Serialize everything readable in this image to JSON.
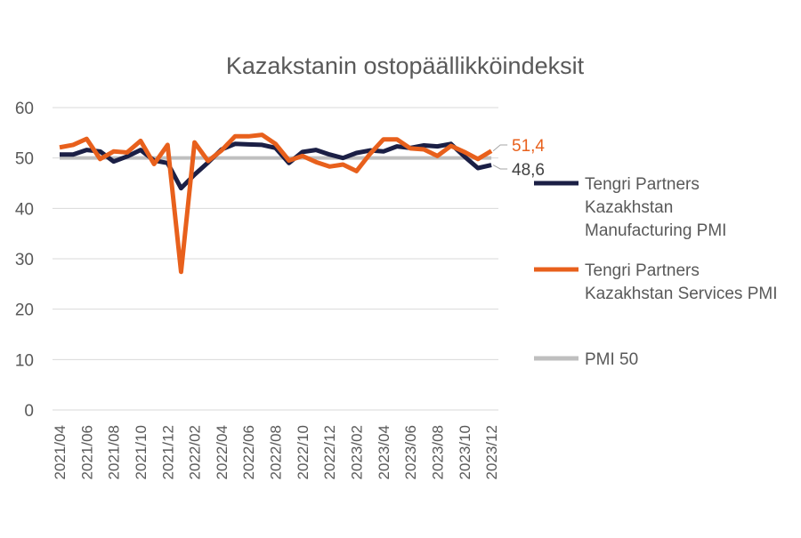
{
  "chart_data": {
    "type": "line",
    "title": "Kazakstanin ostopäällikköindeksit",
    "xlabel": "",
    "ylabel": "",
    "ylim": [
      0,
      60
    ],
    "yticks": [
      0,
      10,
      20,
      30,
      40,
      50,
      60
    ],
    "grid": true,
    "legend_position": "right",
    "x": [
      "2021/04",
      "2021/05",
      "2021/06",
      "2021/07",
      "2021/08",
      "2021/09",
      "2021/10",
      "2021/11",
      "2021/12",
      "2022/01",
      "2022/02",
      "2022/03",
      "2022/04",
      "2022/05",
      "2022/06",
      "2022/07",
      "2022/08",
      "2022/09",
      "2022/10",
      "2022/11",
      "2022/12",
      "2023/01",
      "2023/02",
      "2023/03",
      "2023/04",
      "2023/05",
      "2023/06",
      "2023/07",
      "2023/08",
      "2023/09",
      "2023/10",
      "2023/11",
      "2023/12"
    ],
    "xtick_labels": [
      "2021/04",
      "2021/06",
      "2021/08",
      "2021/10",
      "2021/12",
      "2022/02",
      "2022/04",
      "2022/06",
      "2022/08",
      "2022/10",
      "2022/12",
      "2023/02",
      "2023/04",
      "2023/06",
      "2023/08",
      "2023/10",
      "2023/12"
    ],
    "series": [
      {
        "name": "Tengri Partners Kazakhstan Manufacturing PMI",
        "legend_lines": [
          "Tengri Partners",
          "Kazakhstan",
          "Manufacturing PMI"
        ],
        "color": "#1b1f45",
        "values": [
          50.7,
          50.7,
          51.6,
          51.3,
          49.3,
          50.3,
          51.6,
          49.5,
          49.0,
          44.0,
          46.7,
          49.1,
          51.7,
          52.8,
          52.7,
          52.6,
          52.0,
          49.0,
          51.2,
          51.6,
          50.7,
          50.0,
          51.0,
          51.5,
          51.3,
          52.3,
          52.0,
          52.5,
          52.3,
          52.8,
          50.3,
          48.0,
          48.6
        ],
        "end_label": "48,6"
      },
      {
        "name": "Tengri Partners Kazakhstan Services PMI",
        "legend_lines": [
          "Tengri Partners",
          "Kazakhstan Services PMI"
        ],
        "color": "#e8601c",
        "values": [
          52.1,
          52.6,
          53.8,
          49.8,
          51.3,
          51.1,
          53.4,
          48.8,
          52.6,
          27.4,
          53.1,
          49.4,
          51.5,
          54.3,
          54.3,
          54.6,
          52.8,
          49.5,
          50.4,
          49.2,
          48.3,
          48.7,
          47.4,
          50.8,
          53.7,
          53.7,
          51.9,
          51.7,
          50.4,
          52.4,
          51.2,
          49.8,
          51.4
        ],
        "end_label": "51,4"
      },
      {
        "name": "PMI 50",
        "legend_lines": [
          "PMI 50"
        ],
        "color": "#bfbfbf",
        "values": [
          50,
          50,
          50,
          50,
          50,
          50,
          50,
          50,
          50,
          50,
          50,
          50,
          50,
          50,
          50,
          50,
          50,
          50,
          50,
          50,
          50,
          50,
          50,
          50,
          50,
          50,
          50,
          50,
          50,
          50,
          50,
          50,
          50
        ]
      }
    ]
  }
}
